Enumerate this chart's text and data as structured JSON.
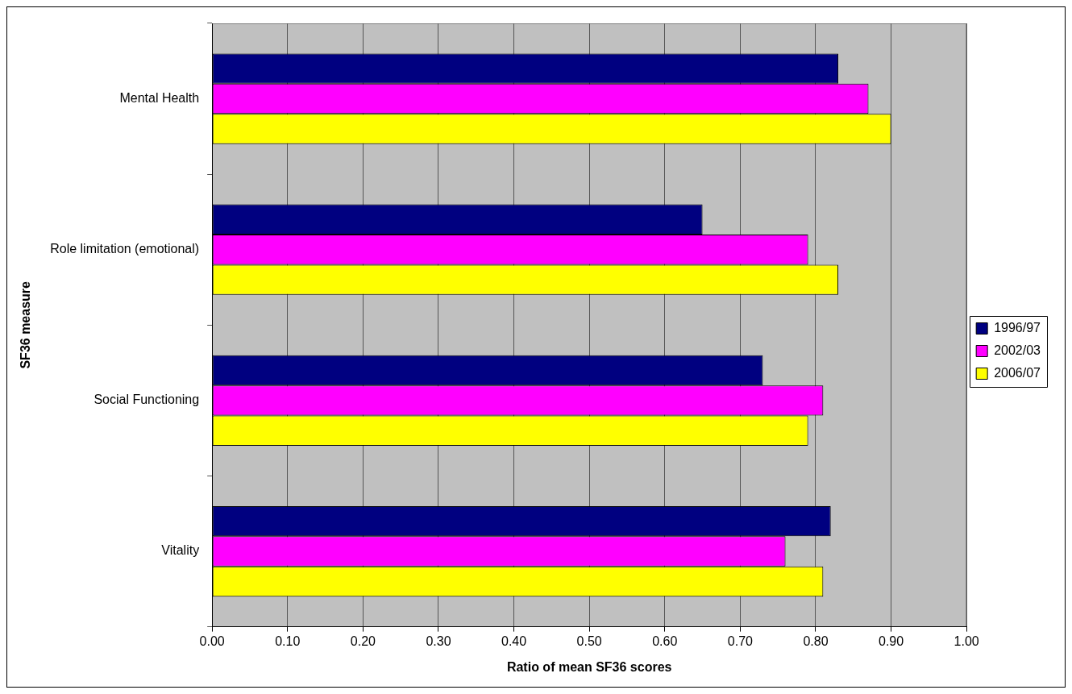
{
  "chart_data": {
    "type": "bar",
    "orientation": "horizontal",
    "xlabel": "Ratio of mean SF36 scores",
    "ylabel": "SF36 measure",
    "categories": [
      "Mental Health",
      "Role limitation (emotional)",
      "Social Functioning",
      "Vitality"
    ],
    "series": [
      {
        "name": "1996/97",
        "color": "#000080",
        "values": [
          0.83,
          0.65,
          0.73,
          0.82
        ]
      },
      {
        "name": "2002/03",
        "color": "#ff00ff",
        "values": [
          0.87,
          0.79,
          0.81,
          0.76
        ]
      },
      {
        "name": "2006/07",
        "color": "#ffff00",
        "values": [
          0.9,
          0.83,
          0.79,
          0.81
        ]
      }
    ],
    "xlim": [
      0,
      1
    ],
    "xticks": [
      {
        "value": 0,
        "label": "0.00"
      },
      {
        "value": 0.1,
        "label": "0.10"
      },
      {
        "value": 0.2,
        "label": "0.20"
      },
      {
        "value": 0.3,
        "label": "0.30"
      },
      {
        "value": 0.4,
        "label": "0.40"
      },
      {
        "value": 0.5,
        "label": "0.50"
      },
      {
        "value": 0.6,
        "label": "0.60"
      },
      {
        "value": 0.7,
        "label": "0.70"
      },
      {
        "value": 0.8,
        "label": "0.80"
      },
      {
        "value": 0.9,
        "label": "0.90"
      },
      {
        "value": 1,
        "label": "1.00"
      }
    ],
    "grid": "x",
    "legend": "right"
  }
}
